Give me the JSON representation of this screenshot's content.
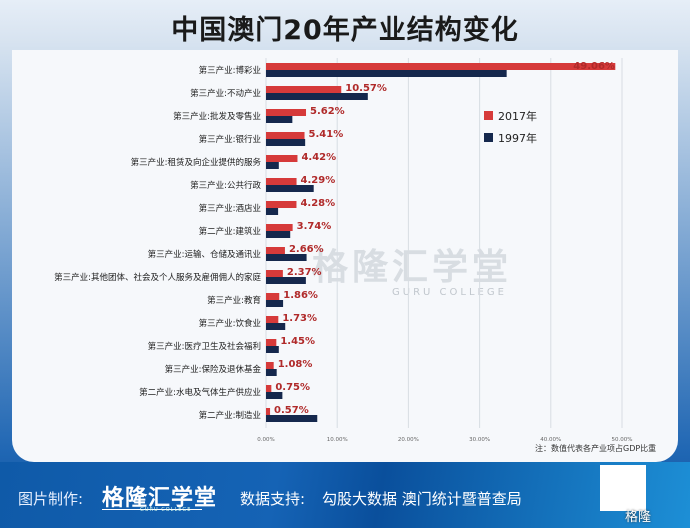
{
  "title": "中国澳门20年产业结构变化",
  "watermark": {
    "main": "格隆汇学堂",
    "sub": "GURU COLLEGE"
  },
  "note": "注：数值代表各产业项占GDP比重",
  "footer": {
    "credit_label": "图片制作:",
    "logo": "格隆汇学堂",
    "logo_sub": "GURU COLLEGE",
    "source_label": "数据支持:",
    "source_text": "勾股大数据  澳门统计暨普查局",
    "weibo": "格隆"
  },
  "colors": {
    "2017": "#d63a3a",
    "1997": "#15284d"
  },
  "chart_data": {
    "type": "bar",
    "orientation": "horizontal",
    "categories": [
      "第三产业:博彩业",
      "第三产业:不动产业",
      "第三产业:批发及零售业",
      "第三产业:银行业",
      "第三产业:租赁及向企业提供的服务",
      "第三产业:公共行政",
      "第三产业:酒店业",
      "第二产业:建筑业",
      "第三产业:运输、仓储及通讯业",
      "第三产业:其他团体、社会及个人服务及雇佣佣人的家庭",
      "第三产业:教育",
      "第三产业:饮食业",
      "第三产业:医疗卫生及社会福利",
      "第三产业:保险及退休基金",
      "第二产业:水电及气体生产供应业",
      "第二产业:制造业"
    ],
    "series": [
      {
        "name": "2017年",
        "values": [
          49.06,
          10.57,
          5.62,
          5.41,
          4.42,
          4.29,
          4.28,
          3.74,
          2.66,
          2.37,
          1.86,
          1.73,
          1.45,
          1.08,
          0.75,
          0.57
        ],
        "labels": [
          "49.06%",
          "10.57%",
          "5.62%",
          "5.41%",
          "4.42%",
          "4.29%",
          "4.28%",
          "3.74%",
          "2.66%",
          "2.37%",
          "1.86%",
          "1.73%",
          "1.45%",
          "1.08%",
          "0.75%",
          "0.57%"
        ]
      },
      {
        "name": "1997年",
        "values": [
          33.8,
          14.3,
          3.7,
          5.5,
          1.8,
          6.7,
          1.7,
          3.4,
          5.7,
          5.6,
          2.4,
          2.7,
          1.8,
          1.5,
          2.3,
          7.2
        ]
      }
    ],
    "xlim": [
      0,
      55
    ],
    "xticks": [
      "0.00%",
      "10.00%",
      "20.00%",
      "30.00%",
      "40.00%",
      "50.00%"
    ],
    "grid": true,
    "legend": "right"
  }
}
